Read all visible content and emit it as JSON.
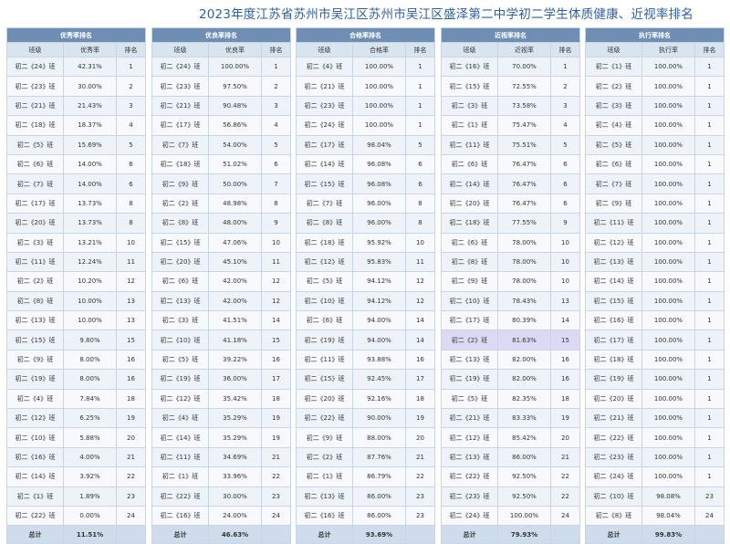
{
  "title": "2023年度江苏省苏州市吴江区苏州市吴江区盛泽第二中学初二学生体质健康、近视率排名",
  "highlight_color": "#dcd9f5",
  "panels": [
    {
      "header": "优秀率排名",
      "cols": [
        "班级",
        "优秀率",
        "排名"
      ],
      "rows": [
        [
          "初二《24》班",
          "42.31%",
          "1"
        ],
        [
          "初二《23》班",
          "30.00%",
          "2"
        ],
        [
          "初二《21》班",
          "21.43%",
          "3"
        ],
        [
          "初二《18》班",
          "18.37%",
          "4"
        ],
        [
          "初二《5》班",
          "15.69%",
          "5"
        ],
        [
          "初二《6》班",
          "14.00%",
          "6"
        ],
        [
          "初二《7》班",
          "14.00%",
          "6"
        ],
        [
          "初二《17》班",
          "13.73%",
          "8"
        ],
        [
          "初二《20》班",
          "13.73%",
          "8"
        ],
        [
          "初二《3》班",
          "13.21%",
          "10"
        ],
        [
          "初二《11》班",
          "12.24%",
          "11"
        ],
        [
          "初二《2》班",
          "10.20%",
          "12"
        ],
        [
          "初二《8》班",
          "10.00%",
          "13"
        ],
        [
          "初二《13》班",
          "10.00%",
          "13"
        ],
        [
          "初二《15》班",
          "9.80%",
          "15"
        ],
        [
          "初二《9》班",
          "8.00%",
          "16"
        ],
        [
          "初二《19》班",
          "8.00%",
          "16"
        ],
        [
          "初二《4》班",
          "7.84%",
          "18"
        ],
        [
          "初二《12》班",
          "6.25%",
          "19"
        ],
        [
          "初二《10》班",
          "5.88%",
          "20"
        ],
        [
          "初二《16》班",
          "4.00%",
          "21"
        ],
        [
          "初二《14》班",
          "3.92%",
          "22"
        ],
        [
          "初二《1》班",
          "1.89%",
          "23"
        ],
        [
          "初二《22》班",
          "0.00%",
          "24"
        ]
      ],
      "total": [
        "总计",
        "11.51%",
        ""
      ]
    },
    {
      "header": "优良率排名",
      "cols": [
        "班级",
        "优良率",
        "排名"
      ],
      "rows": [
        [
          "初二《24》班",
          "100.00%",
          "1"
        ],
        [
          "初二《23》班",
          "97.50%",
          "2"
        ],
        [
          "初二《21》班",
          "90.48%",
          "3"
        ],
        [
          "初二《17》班",
          "56.86%",
          "4"
        ],
        [
          "初二《7》班",
          "54.00%",
          "5"
        ],
        [
          "初二《18》班",
          "51.02%",
          "6"
        ],
        [
          "初二《9》班",
          "50.00%",
          "7"
        ],
        [
          "初二《2》班",
          "48.98%",
          "8"
        ],
        [
          "初二《8》班",
          "48.00%",
          "9"
        ],
        [
          "初二《15》班",
          "47.06%",
          "10"
        ],
        [
          "初二《20》班",
          "45.10%",
          "11"
        ],
        [
          "初二《6》班",
          "42.00%",
          "12"
        ],
        [
          "初二《13》班",
          "42.00%",
          "12"
        ],
        [
          "初二《3》班",
          "41.51%",
          "14"
        ],
        [
          "初二《10》班",
          "41.18%",
          "15"
        ],
        [
          "初二《5》班",
          "39.22%",
          "16"
        ],
        [
          "初二《19》班",
          "36.00%",
          "17"
        ],
        [
          "初二《12》班",
          "35.42%",
          "18"
        ],
        [
          "初二《4》班",
          "35.29%",
          "19"
        ],
        [
          "初二《14》班",
          "35.29%",
          "19"
        ],
        [
          "初二《11》班",
          "34.69%",
          "21"
        ],
        [
          "初二《1》班",
          "33.96%",
          "22"
        ],
        [
          "初二《22》班",
          "30.00%",
          "23"
        ],
        [
          "初二《16》班",
          "24.00%",
          "24"
        ]
      ],
      "total": [
        "总计",
        "46.63%",
        ""
      ]
    },
    {
      "header": "合格率排名",
      "cols": [
        "班级",
        "合格率",
        "排名"
      ],
      "rows": [
        [
          "初二《4》班",
          "100.00%",
          "1"
        ],
        [
          "初二《21》班",
          "100.00%",
          "1"
        ],
        [
          "初二《23》班",
          "100.00%",
          "1"
        ],
        [
          "初二《24》班",
          "100.00%",
          "1"
        ],
        [
          "初二《17》班",
          "98.04%",
          "5"
        ],
        [
          "初二《14》班",
          "96.08%",
          "6"
        ],
        [
          "初二《15》班",
          "96.08%",
          "6"
        ],
        [
          "初二《7》班",
          "96.00%",
          "8"
        ],
        [
          "初二《8》班",
          "96.00%",
          "8"
        ],
        [
          "初二《18》班",
          "95.92%",
          "10"
        ],
        [
          "初二《12》班",
          "95.83%",
          "11"
        ],
        [
          "初二《5》班",
          "94.12%",
          "12"
        ],
        [
          "初二《10》班",
          "94.12%",
          "12"
        ],
        [
          "初二《6》班",
          "94.00%",
          "14"
        ],
        [
          "初二《19》班",
          "94.00%",
          "14"
        ],
        [
          "初二《11》班",
          "93.88%",
          "16"
        ],
        [
          "初二《15》班",
          "92.45%",
          "17"
        ],
        [
          "初二《20》班",
          "92.16%",
          "18"
        ],
        [
          "初二《22》班",
          "90.00%",
          "19"
        ],
        [
          "初二《9》班",
          "88.00%",
          "20"
        ],
        [
          "初二《2》班",
          "87.76%",
          "21"
        ],
        [
          "初二《1》班",
          "86.79%",
          "22"
        ],
        [
          "初二《13》班",
          "86.00%",
          "23"
        ],
        [
          "初二《16》班",
          "86.00%",
          "23"
        ]
      ],
      "total": [
        "总计",
        "93.69%",
        ""
      ]
    },
    {
      "header": "近视率排名",
      "cols": [
        "班级",
        "近视率",
        "排名"
      ],
      "rows": [
        [
          "初二《16》班",
          "70.00%",
          "1"
        ],
        [
          "初二《15》班",
          "72.55%",
          "2"
        ],
        [
          "初二《3》班",
          "73.58%",
          "3"
        ],
        [
          "初二《1》班",
          "75.47%",
          "4"
        ],
        [
          "初二《11》班",
          "75.51%",
          "5"
        ],
        [
          "初二《6》班",
          "76.47%",
          "6"
        ],
        [
          "初二《14》班",
          "76.47%",
          "6"
        ],
        [
          "初二《20》班",
          "76.47%",
          "6"
        ],
        [
          "初二《18》班",
          "77.55%",
          "9"
        ],
        [
          "初二《6》班",
          "78.00%",
          "10"
        ],
        [
          "初二《8》班",
          "78.00%",
          "10"
        ],
        [
          "初二《9》班",
          "78.00%",
          "10"
        ],
        [
          "初二《10》班",
          "78.43%",
          "13"
        ],
        [
          "初二《17》班",
          "80.39%",
          "14"
        ],
        [
          "初二《2》班",
          "81.63%",
          "15"
        ],
        [
          "初二《13》班",
          "82.00%",
          "16"
        ],
        [
          "初二《19》班",
          "82.00%",
          "16"
        ],
        [
          "初二《5》班",
          "82.35%",
          "18"
        ],
        [
          "初二《21》班",
          "83.33%",
          "19"
        ],
        [
          "初二《12》班",
          "85.42%",
          "20"
        ],
        [
          "初二《13》班",
          "86.00%",
          "21"
        ],
        [
          "初二《22》班",
          "92.50%",
          "22"
        ],
        [
          "初二《23》班",
          "92.50%",
          "22"
        ],
        [
          "初二《24》班",
          "100.00%",
          "24"
        ]
      ],
      "total": [
        "总计",
        "79.93%",
        ""
      ],
      "highlight_row": 14
    },
    {
      "header": "执行率排名",
      "cols": [
        "班级",
        "执行率",
        "排名"
      ],
      "rows": [
        [
          "初二《1》班",
          "100.00%",
          "1"
        ],
        [
          "初二《2》班",
          "100.00%",
          "1"
        ],
        [
          "初二《3》班",
          "100.00%",
          "1"
        ],
        [
          "初二《4》班",
          "100.00%",
          "1"
        ],
        [
          "初二《5》班",
          "100.00%",
          "1"
        ],
        [
          "初二《6》班",
          "100.00%",
          "1"
        ],
        [
          "初二《7》班",
          "100.00%",
          "1"
        ],
        [
          "初二《9》班",
          "100.00%",
          "1"
        ],
        [
          "初二《11》班",
          "100.00%",
          "1"
        ],
        [
          "初二《12》班",
          "100.00%",
          "1"
        ],
        [
          "初二《13》班",
          "100.00%",
          "1"
        ],
        [
          "初二《14》班",
          "100.00%",
          "1"
        ],
        [
          "初二《15》班",
          "100.00%",
          "1"
        ],
        [
          "初二《16》班",
          "100.00%",
          "1"
        ],
        [
          "初二《17》班",
          "100.00%",
          "1"
        ],
        [
          "初二《18》班",
          "100.00%",
          "1"
        ],
        [
          "初二《19》班",
          "100.00%",
          "1"
        ],
        [
          "初二《20》班",
          "100.00%",
          "1"
        ],
        [
          "初二《21》班",
          "100.00%",
          "1"
        ],
        [
          "初二《22》班",
          "100.00%",
          "1"
        ],
        [
          "初二《23》班",
          "100.00%",
          "1"
        ],
        [
          "初二《24》班",
          "100.00%",
          "1"
        ],
        [
          "初二《10》班",
          "98.08%",
          "23"
        ],
        [
          "初二《8》班",
          "98.04%",
          "24"
        ]
      ],
      "total": [
        "总计",
        "99.83%",
        ""
      ]
    }
  ]
}
